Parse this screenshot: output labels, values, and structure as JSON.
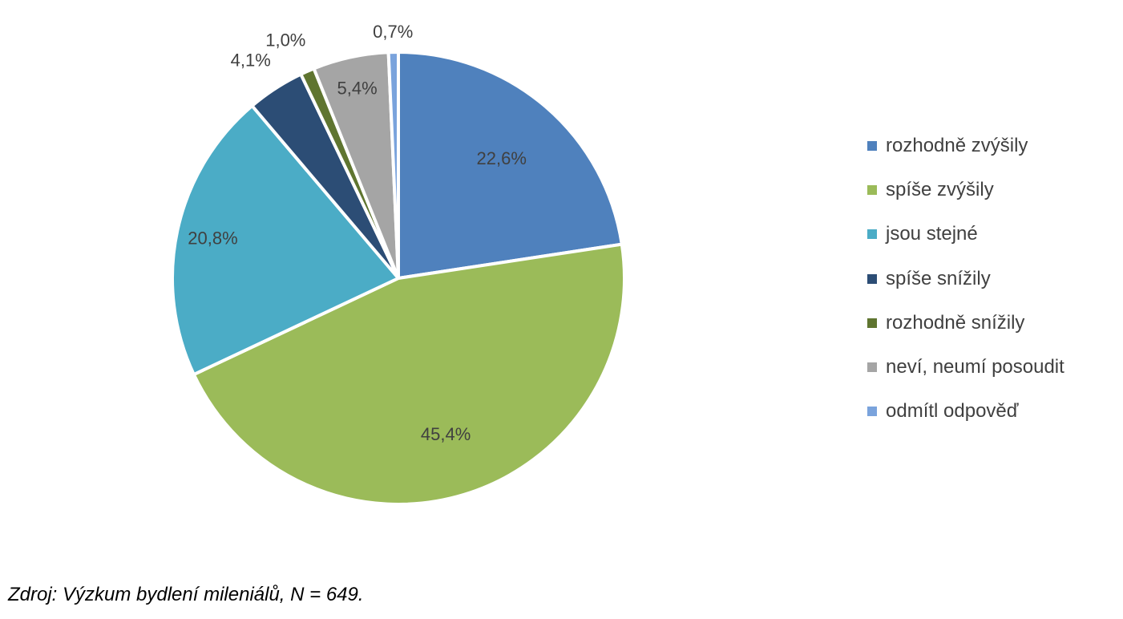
{
  "chart_data": {
    "type": "pie",
    "categories": [
      "rozhodně zvýšily",
      "spíše zvýšily",
      "jsou stejné",
      "spíše snížily",
      "rozhodně snížily",
      "neví, neumí posoudit",
      "odmítl odpověď"
    ],
    "values": [
      22.6,
      45.4,
      20.8,
      4.1,
      1.0,
      5.4,
      0.7
    ],
    "data_labels": [
      "22,6%",
      "45,4%",
      "20,8%",
      "4,1%",
      "1,0%",
      "5,4%",
      "0,7%"
    ],
    "colors": [
      "#4f81bd",
      "#9bbb59",
      "#4bacc6",
      "#2c4d75",
      "#5f7530",
      "#a5a5a5",
      "#7aa3dc"
    ],
    "start_angle": "12 o'clock",
    "direction": "clockwise",
    "legend_position": "right"
  },
  "source_note": "Zdroj: Výzkum bydlení mileniálů, N = 649."
}
